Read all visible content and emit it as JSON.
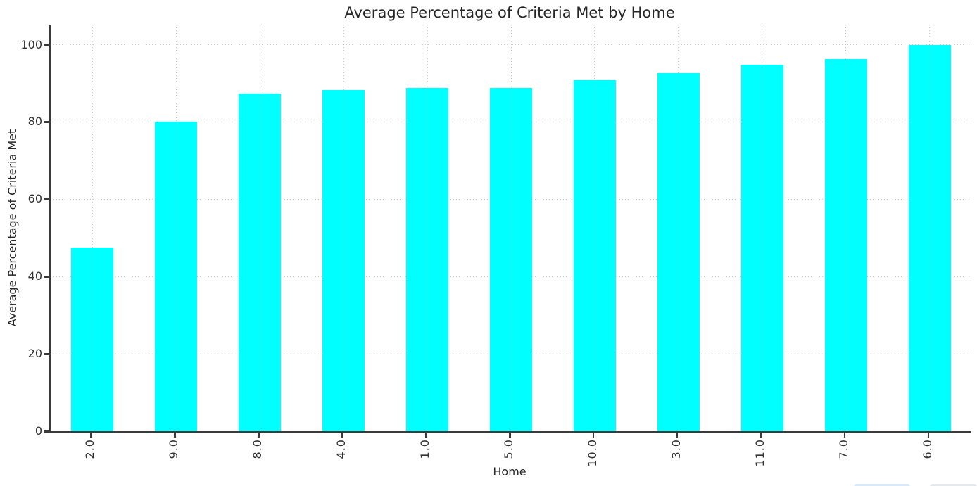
{
  "chart_data": {
    "type": "bar",
    "title": "Average Percentage of Criteria Met by Home",
    "xlabel": "Home",
    "ylabel": "Average Percentage of Criteria Met",
    "categories": [
      "2.0",
      "9.0",
      "8.0",
      "4.0",
      "1.0",
      "5.0",
      "10.0",
      "3.0",
      "11.0",
      "7.0",
      "6.0"
    ],
    "values": [
      47.5,
      80.0,
      87.4,
      88.2,
      88.8,
      88.9,
      90.8,
      92.7,
      94.8,
      96.3,
      100.0
    ],
    "yticks": [
      0,
      20,
      40,
      60,
      80,
      100
    ],
    "ylim": [
      0,
      105.2
    ],
    "bar_color": "#00FFFF",
    "grid": true,
    "grid_style": "dotted",
    "grid_color": "#cccccc",
    "axis_color": "#3a3a3a",
    "text_color": "#262626",
    "legend": "none"
  },
  "artifacts": {
    "partial_element_left_color": "#d9e9f7",
    "partial_element_right_color": "#e6e9ec"
  }
}
